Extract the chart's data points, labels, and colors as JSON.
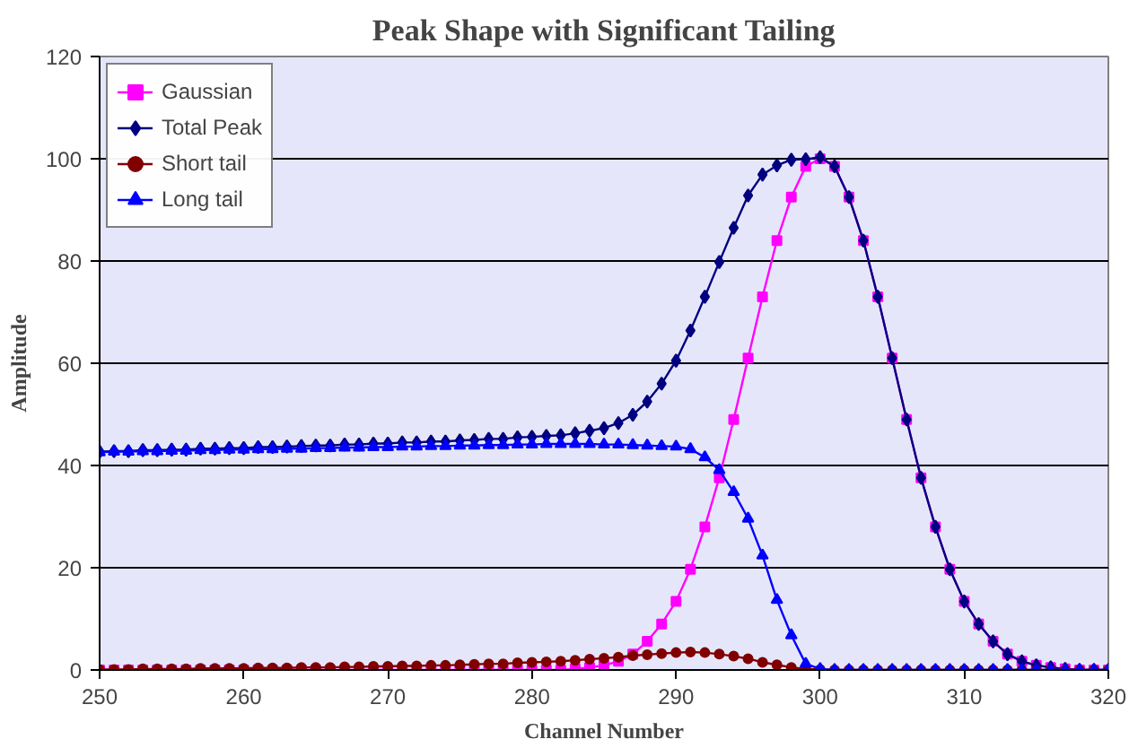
{
  "chart_data": {
    "type": "line",
    "title": "Peak Shape with Significant Tailing",
    "xlabel": "Channel Number",
    "ylabel": "Amplitude",
    "x": [
      250,
      251,
      252,
      253,
      254,
      255,
      256,
      257,
      258,
      259,
      260,
      261,
      262,
      263,
      264,
      265,
      266,
      267,
      268,
      269,
      270,
      271,
      272,
      273,
      274,
      275,
      276,
      277,
      278,
      279,
      280,
      281,
      282,
      283,
      284,
      285,
      286,
      287,
      288,
      289,
      290,
      291,
      292,
      293,
      294,
      295,
      296,
      297,
      298,
      299,
      300,
      301,
      302,
      303,
      304,
      305,
      306,
      307,
      308,
      309,
      310,
      311,
      312,
      313,
      314,
      315,
      316,
      317,
      318,
      319,
      320
    ],
    "series": [
      {
        "name": "Gaussian",
        "color": "#ff00ff",
        "marker": "square",
        "values": [
          0,
          0,
          0,
          0,
          0,
          0,
          0,
          0,
          0,
          0,
          0,
          0,
          0,
          0,
          0,
          0,
          0,
          0,
          0,
          0,
          0,
          0,
          0,
          0,
          0,
          0,
          0,
          0,
          0,
          0,
          0,
          0,
          0,
          0.2,
          0.5,
          0.9,
          1.7,
          3.1,
          5.6,
          9.0,
          13.4,
          19.7,
          28.0,
          37.6,
          49.0,
          61.0,
          73.0,
          84.0,
          92.5,
          98.5,
          100,
          98.5,
          92.5,
          84.0,
          73.0,
          61.0,
          49.0,
          37.6,
          28.0,
          19.7,
          13.4,
          9.0,
          5.6,
          3.1,
          1.7,
          0.9,
          0.5,
          0.2,
          0,
          0,
          0
        ]
      },
      {
        "name": "Total Peak",
        "color": "#000080",
        "marker": "diamond",
        "values": [
          42.7,
          42.8,
          42.8,
          43.0,
          43.0,
          43.1,
          43.1,
          43.3,
          43.3,
          43.4,
          43.4,
          43.6,
          43.6,
          43.7,
          43.8,
          43.9,
          43.9,
          44.1,
          44.1,
          44.3,
          44.3,
          44.5,
          44.5,
          44.7,
          44.7,
          44.9,
          45.0,
          45.2,
          45.2,
          45.5,
          45.6,
          45.8,
          45.9,
          46.3,
          46.8,
          47.3,
          48.3,
          49.9,
          52.5,
          56.0,
          60.5,
          66.4,
          73.0,
          79.8,
          86.5,
          92.8,
          96.9,
          98.7,
          99.8,
          99.9,
          100.3,
          98.5,
          92.5,
          84.0,
          73.0,
          61.0,
          49.0,
          37.6,
          28.0,
          19.7,
          13.4,
          9.0,
          5.6,
          3.1,
          1.7,
          0.9,
          0.5,
          0.2,
          0,
          0,
          0
        ]
      },
      {
        "name": "Short tail",
        "color": "#800000",
        "marker": "circle",
        "values": [
          0.1,
          0.1,
          0.1,
          0.2,
          0.2,
          0.2,
          0.2,
          0.3,
          0.3,
          0.3,
          0.3,
          0.4,
          0.4,
          0.4,
          0.5,
          0.5,
          0.5,
          0.6,
          0.6,
          0.7,
          0.7,
          0.8,
          0.8,
          0.9,
          0.9,
          1.0,
          1.1,
          1.2,
          1.2,
          1.4,
          1.5,
          1.6,
          1.7,
          1.9,
          2.1,
          2.3,
          2.5,
          2.8,
          3.0,
          3.2,
          3.4,
          3.5,
          3.4,
          3.1,
          2.7,
          2.2,
          1.5,
          1.0,
          0.5,
          0.2,
          0.1,
          0,
          0,
          0,
          0,
          0,
          0,
          0,
          0,
          0,
          0,
          0,
          0,
          0,
          0,
          0,
          0,
          0,
          0,
          0,
          0
        ]
      },
      {
        "name": "Long tail",
        "color": "#0000ff",
        "marker": "triangle",
        "values": [
          42.6,
          42.7,
          42.7,
          42.8,
          42.8,
          42.9,
          42.9,
          43.0,
          43.0,
          43.1,
          43.1,
          43.2,
          43.2,
          43.3,
          43.3,
          43.4,
          43.4,
          43.5,
          43.5,
          43.6,
          43.6,
          43.7,
          43.7,
          43.8,
          43.8,
          43.9,
          43.9,
          44.0,
          44.0,
          44.1,
          44.1,
          44.2,
          44.2,
          44.2,
          44.2,
          44.1,
          44.1,
          44.0,
          43.9,
          43.8,
          43.7,
          43.2,
          41.6,
          39.1,
          34.8,
          29.6,
          22.4,
          13.7,
          6.8,
          1.2,
          0.2,
          0,
          0,
          0,
          0,
          0,
          0,
          0,
          0,
          0,
          0,
          0,
          0,
          0,
          0,
          0,
          0,
          0,
          0,
          0,
          0
        ]
      }
    ],
    "xlim": [
      250,
      320
    ],
    "ylim": [
      0,
      120
    ],
    "xticks": [
      250,
      260,
      270,
      280,
      290,
      300,
      310,
      320
    ],
    "yticks": [
      0,
      20,
      40,
      60,
      80,
      100,
      120
    ],
    "grid": "y",
    "legend": "top left",
    "line_style": "solid"
  }
}
